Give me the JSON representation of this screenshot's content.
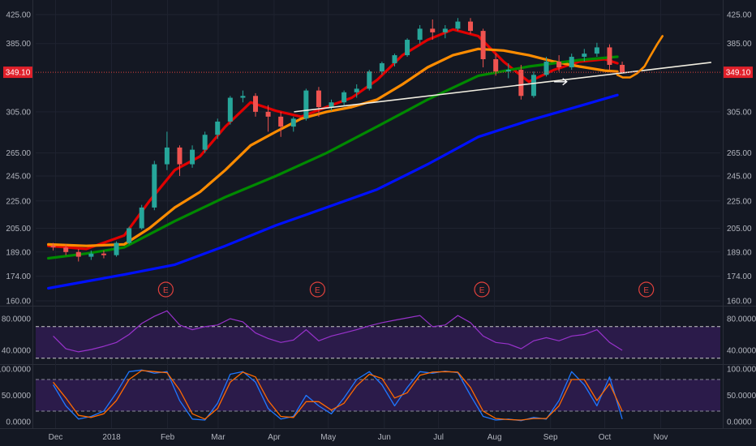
{
  "chart_data": [
    {
      "type": "candlestick",
      "panel": "price",
      "x_ticks": [
        "Dec",
        "2018",
        "Feb",
        "Mar",
        "Apr",
        "May",
        "Jun",
        "Jul",
        "Aug",
        "Sep",
        "Oct",
        "Nov"
      ],
      "y_ticks": [
        "425.00",
        "385.00",
        "349.10",
        "305.00",
        "265.00",
        "245.00",
        "225.00",
        "205.00",
        "189.00",
        "174.00",
        "160.00"
      ],
      "y_tick_values": [
        425,
        385,
        349.1,
        305,
        265,
        245,
        225,
        205,
        189,
        174,
        160
      ],
      "ylim": [
        160,
        425
      ],
      "scale": "log",
      "last_price": 349.1,
      "last_price_label": "349.10",
      "earnings_markers": {
        "label": "E",
        "x": [
          "2018-01-31",
          "2018-04-25",
          "2018-07-25",
          "2018-10-24"
        ]
      },
      "candles": [
        [
          "2017-11-27",
          193,
          195,
          190,
          192
        ],
        [
          "2017-12-04",
          192,
          194,
          187,
          189
        ],
        [
          "2017-12-11",
          189,
          191,
          183,
          186
        ],
        [
          "2017-12-18",
          186,
          190,
          184,
          188
        ],
        [
          "2017-12-25",
          188,
          190,
          185,
          187
        ],
        [
          "2018-01-01",
          187,
          196,
          186,
          195
        ],
        [
          "2018-01-08",
          195,
          206,
          194,
          205
        ],
        [
          "2018-01-15",
          205,
          222,
          204,
          220
        ],
        [
          "2018-01-22",
          220,
          258,
          218,
          255
        ],
        [
          "2018-01-29",
          255,
          285,
          250,
          270
        ],
        [
          "2018-02-05",
          270,
          272,
          245,
          255
        ],
        [
          "2018-02-12",
          255,
          272,
          252,
          268
        ],
        [
          "2018-02-19",
          268,
          285,
          265,
          282
        ],
        [
          "2018-02-26",
          282,
          298,
          278,
          295
        ],
        [
          "2018-03-05",
          295,
          322,
          292,
          320
        ],
        [
          "2018-03-12",
          320,
          328,
          315,
          322
        ],
        [
          "2018-03-19",
          322,
          325,
          300,
          305
        ],
        [
          "2018-03-26",
          305,
          312,
          285,
          300
        ],
        [
          "2018-04-02",
          300,
          305,
          280,
          290
        ],
        [
          "2018-04-09",
          290,
          300,
          285,
          298
        ],
        [
          "2018-04-16",
          298,
          330,
          296,
          328
        ],
        [
          "2018-04-23",
          328,
          332,
          300,
          310
        ],
        [
          "2018-04-30",
          310,
          318,
          306,
          315
        ],
        [
          "2018-05-07",
          315,
          328,
          312,
          326
        ],
        [
          "2018-05-14",
          326,
          335,
          320,
          330
        ],
        [
          "2018-05-21",
          330,
          352,
          328,
          350
        ],
        [
          "2018-05-28",
          350,
          362,
          346,
          360
        ],
        [
          "2018-06-04",
          360,
          372,
          356,
          370
        ],
        [
          "2018-06-11",
          370,
          392,
          368,
          390
        ],
        [
          "2018-06-18",
          390,
          410,
          385,
          405
        ],
        [
          "2018-06-25",
          405,
          418,
          390,
          400
        ],
        [
          "2018-07-02",
          400,
          410,
          392,
          405
        ],
        [
          "2018-07-09",
          405,
          420,
          402,
          415
        ],
        [
          "2018-07-16",
          415,
          420,
          398,
          402
        ],
        [
          "2018-07-23",
          402,
          405,
          355,
          365
        ],
        [
          "2018-07-30",
          365,
          372,
          345,
          350
        ],
        [
          "2018-08-06",
          350,
          360,
          342,
          352
        ],
        [
          "2018-08-13",
          352,
          358,
          318,
          322
        ],
        [
          "2018-08-20",
          322,
          350,
          320,
          346
        ],
        [
          "2018-08-27",
          346,
          368,
          344,
          362
        ],
        [
          "2018-09-03",
          362,
          370,
          350,
          355
        ],
        [
          "2018-09-10",
          355,
          372,
          352,
          368
        ],
        [
          "2018-09-17",
          368,
          378,
          362,
          372
        ],
        [
          "2018-09-24",
          372,
          386,
          368,
          380
        ],
        [
          "2018-10-01",
          380,
          384,
          352,
          358
        ],
        [
          "2018-10-08",
          358,
          362,
          348,
          349
        ]
      ],
      "series": [
        {
          "name": "",
          "color": "#e10000",
          "x": [
            "2017-11-27",
            "2017-12-18",
            "2018-01-08",
            "2018-01-22",
            "2018-02-05",
            "2018-02-19",
            "2018-03-05",
            "2018-03-19",
            "2018-04-02",
            "2018-04-16",
            "2018-04-30",
            "2018-05-14",
            "2018-05-28",
            "2018-06-11",
            "2018-06-25",
            "2018-07-09",
            "2018-07-23",
            "2018-08-06",
            "2018-08-20",
            "2018-09-03",
            "2018-09-17",
            "2018-10-01",
            "2018-10-08"
          ],
          "values": [
            193,
            191,
            200,
            225,
            250,
            262,
            290,
            315,
            306,
            300,
            310,
            320,
            340,
            370,
            390,
            404,
            395,
            362,
            338,
            352,
            362,
            365,
            360
          ]
        },
        {
          "name": "",
          "color": "#ff8c00",
          "x": [
            "2017-11-27",
            "2017-12-18",
            "2018-01-08",
            "2018-01-22",
            "2018-02-05",
            "2018-02-19",
            "2018-03-05",
            "2018-03-19",
            "2018-04-02",
            "2018-04-16",
            "2018-04-30",
            "2018-05-14",
            "2018-05-28",
            "2018-06-11",
            "2018-06-25",
            "2018-07-09",
            "2018-07-23",
            "2018-08-06",
            "2018-08-20",
            "2018-09-03",
            "2018-09-17",
            "2018-10-01",
            "2018-10-08"
          ],
          "values": [
            194,
            193,
            194,
            205,
            220,
            232,
            250,
            272,
            285,
            298,
            305,
            310,
            318,
            335,
            355,
            370,
            378,
            376,
            370,
            362,
            356,
            351,
            350
          ]
        },
        {
          "name": "",
          "color": "#008a00",
          "x": [
            "2017-11-27",
            "2017-12-18",
            "2018-01-08",
            "2018-02-05",
            "2018-03-05",
            "2018-04-02",
            "2018-04-30",
            "2018-05-28",
            "2018-06-25",
            "2018-07-23",
            "2018-08-20",
            "2018-09-17",
            "2018-10-08"
          ],
          "values": [
            185,
            188,
            192,
            210,
            228,
            245,
            265,
            290,
            318,
            345,
            356,
            364,
            368
          ]
        },
        {
          "name": "",
          "color": "#0010ff",
          "x": [
            "2017-11-27",
            "2017-12-18",
            "2018-01-08",
            "2018-02-05",
            "2018-03-05",
            "2018-04-02",
            "2018-04-30",
            "2018-05-28",
            "2018-06-25",
            "2018-07-23",
            "2018-08-20",
            "2018-09-17",
            "2018-10-08"
          ],
          "values": [
            167,
            171,
            175,
            181,
            193,
            207,
            220,
            234,
            255,
            280,
            296,
            311,
            323
          ]
        }
      ],
      "trendline": {
        "color": "#f0ede0",
        "x": [
          "2018-04-12",
          "2018-11-29"
        ],
        "values": [
          305,
          361
        ]
      },
      "projection": {
        "color": "#ff8c00",
        "x": [
          "2018-10-08",
          "2018-10-11",
          "2018-10-15",
          "2018-10-19",
          "2018-10-23",
          "2018-10-26",
          "2018-10-30",
          "2018-11-02"
        ],
        "values": [
          346,
          343,
          343,
          348,
          356,
          368,
          384,
          395
        ]
      },
      "arrow": {
        "color": "#ffffff",
        "x": [
          "2018-09-03",
          "2018-09-10"
        ],
        "values": [
          338,
          338
        ]
      }
    },
    {
      "type": "line",
      "panel": "rsi",
      "y_ticks": [
        "80.0000",
        "40.0000"
      ],
      "y_tick_values": [
        80,
        40
      ],
      "ylim": [
        22,
        98
      ],
      "band": [
        30,
        70
      ],
      "color": "#9932cc",
      "x": [
        "2017-11-27",
        "2017-12-04",
        "2017-12-11",
        "2017-12-18",
        "2017-12-25",
        "2018-01-01",
        "2018-01-08",
        "2018-01-15",
        "2018-01-22",
        "2018-01-29",
        "2018-02-05",
        "2018-02-12",
        "2018-02-19",
        "2018-02-26",
        "2018-03-05",
        "2018-03-12",
        "2018-03-19",
        "2018-03-26",
        "2018-04-02",
        "2018-04-09",
        "2018-04-16",
        "2018-04-23",
        "2018-04-30",
        "2018-05-07",
        "2018-05-14",
        "2018-05-21",
        "2018-05-28",
        "2018-06-04",
        "2018-06-11",
        "2018-06-18",
        "2018-06-25",
        "2018-07-02",
        "2018-07-09",
        "2018-07-16",
        "2018-07-23",
        "2018-07-30",
        "2018-08-06",
        "2018-08-13",
        "2018-08-20",
        "2018-08-27",
        "2018-09-03",
        "2018-09-10",
        "2018-09-17",
        "2018-09-24",
        "2018-10-01",
        "2018-10-08"
      ],
      "values": [
        58,
        42,
        38,
        41,
        45,
        50,
        60,
        74,
        83,
        90,
        72,
        66,
        70,
        72,
        80,
        76,
        62,
        55,
        50,
        53,
        66,
        52,
        58,
        62,
        66,
        71,
        75,
        78,
        81,
        84,
        70,
        72,
        84,
        75,
        58,
        50,
        48,
        42,
        52,
        56,
        52,
        58,
        60,
        66,
        50,
        40
      ]
    },
    {
      "type": "line",
      "panel": "stochastic",
      "y_ticks": [
        "100.0000",
        "50.0000",
        "0.0000"
      ],
      "y_tick_values": [
        100,
        50,
        0
      ],
      "ylim": [
        -5,
        105
      ],
      "band": [
        20,
        80
      ],
      "x": [
        "2017-11-27",
        "2017-12-04",
        "2017-12-11",
        "2017-12-18",
        "2017-12-25",
        "2018-01-01",
        "2018-01-08",
        "2018-01-15",
        "2018-01-22",
        "2018-01-29",
        "2018-02-05",
        "2018-02-12",
        "2018-02-19",
        "2018-02-26",
        "2018-03-05",
        "2018-03-12",
        "2018-03-19",
        "2018-03-26",
        "2018-04-02",
        "2018-04-09",
        "2018-04-16",
        "2018-04-23",
        "2018-04-30",
        "2018-05-07",
        "2018-05-14",
        "2018-05-21",
        "2018-05-28",
        "2018-06-04",
        "2018-06-11",
        "2018-06-18",
        "2018-06-25",
        "2018-07-02",
        "2018-07-09",
        "2018-07-16",
        "2018-07-23",
        "2018-07-30",
        "2018-08-06",
        "2018-08-13",
        "2018-08-20",
        "2018-08-27",
        "2018-09-03",
        "2018-09-10",
        "2018-09-17",
        "2018-09-24",
        "2018-10-01",
        "2018-10-08"
      ],
      "series": [
        {
          "name": "",
          "color": "#1f77ff",
          "values": [
            70,
            30,
            5,
            10,
            20,
            55,
            95,
            98,
            92,
            95,
            40,
            5,
            3,
            35,
            90,
            95,
            75,
            25,
            5,
            10,
            50,
            30,
            15,
            45,
            80,
            95,
            70,
            30,
            65,
            95,
            92,
            96,
            93,
            50,
            10,
            3,
            5,
            2,
            8,
            5,
            40,
            95,
            70,
            30,
            85,
            5
          ]
        },
        {
          "name": "",
          "color": "#ff6a00",
          "values": [
            75,
            45,
            12,
            8,
            15,
            40,
            80,
            97,
            95,
            93,
            60,
            15,
            5,
            25,
            75,
            94,
            85,
            40,
            10,
            8,
            38,
            38,
            22,
            35,
            68,
            90,
            82,
            45,
            55,
            88,
            94,
            95,
            94,
            65,
            20,
            6,
            4,
            3,
            6,
            6,
            30,
            80,
            80,
            40,
            72,
            20
          ]
        }
      ]
    }
  ]
}
